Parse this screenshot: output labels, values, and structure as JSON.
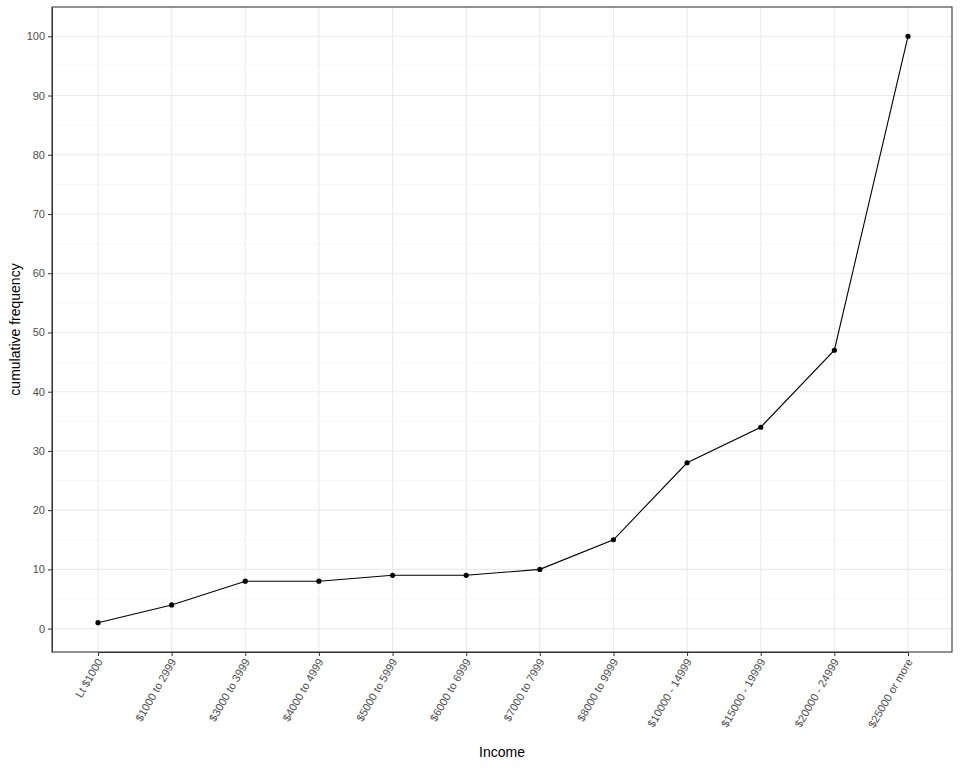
{
  "chart_data": {
    "type": "line",
    "x_label": "Income",
    "y_label": "cumulative frequency",
    "categories": [
      "Lt $1000",
      "$1000 to 2999",
      "$3000 to 3999",
      "$4000 to 4999",
      "$5000 to 5999",
      "$6000 to 6999",
      "$7000 to 7999",
      "$8000 to 9999",
      "$10000 - 14999",
      "$15000 - 19999",
      "$20000 - 24999",
      "$25000 or more"
    ],
    "values": [
      1,
      4,
      8,
      8,
      9,
      9,
      10,
      15,
      28,
      34,
      47,
      100
    ],
    "color": "#000000",
    "marker": "circle",
    "ylim": [
      -3.95,
      104.95
    ],
    "yticks": [
      0,
      10,
      20,
      30,
      40,
      50,
      60,
      70,
      80,
      90,
      100
    ],
    "grid": true
  }
}
